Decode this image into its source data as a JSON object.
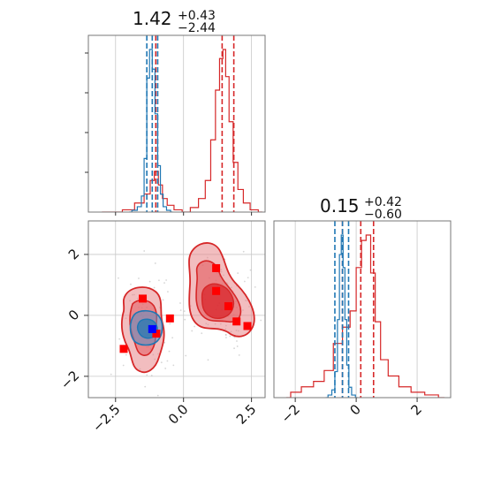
{
  "colors": {
    "red": "#d62728",
    "blue": "#1f77b4",
    "red_fill": "#e8868a",
    "red_fill_dark": "#e35a5f",
    "red_fill_core": "#d8232a",
    "blue_fill": "#5b8ec2",
    "grid": "#c8c8c8",
    "marker_red": "#ff0000",
    "marker_blue": "#0000ff"
  },
  "titles": {
    "top": {
      "value": "1.42",
      "plus": "+0.43",
      "minus": "−2.44"
    },
    "right": {
      "value": "0.15",
      "plus": "+0.42",
      "minus": "−0.60"
    }
  },
  "chart_data": [
    {
      "panel": "top-left histogram (parameter 1)",
      "type": "line",
      "xlim": [
        -3.5,
        3.0
      ],
      "series": [
        {
          "color": "red",
          "quantiles": [
            -1.02,
            1.42,
            1.85
          ],
          "x": [
            -3.0,
            -2.5,
            -2.0,
            -1.6,
            -1.3,
            -1.15,
            -1.0,
            -0.85,
            -0.7,
            -0.5,
            -0.2,
            0.1,
            0.4,
            0.7,
            0.9,
            1.1,
            1.25,
            1.4,
            1.5,
            1.6,
            1.75,
            1.9,
            2.1,
            2.3,
            2.6,
            2.9
          ],
          "counts": [
            0,
            0,
            1,
            4,
            8,
            14,
            18,
            12,
            6,
            3,
            1,
            0,
            2,
            6,
            14,
            32,
            54,
            68,
            72,
            60,
            40,
            22,
            10,
            4,
            1,
            0
          ]
        },
        {
          "color": "blue",
          "quantiles": [
            -1.35,
            -1.15,
            -0.95
          ],
          "x": [
            -2.0,
            -1.8,
            -1.6,
            -1.5,
            -1.4,
            -1.3,
            -1.2,
            -1.1,
            -1.0,
            -0.9,
            -0.8,
            -0.7,
            -0.55,
            -0.4
          ],
          "counts": [
            0,
            2,
            6,
            18,
            60,
            150,
            182,
            160,
            110,
            52,
            20,
            6,
            2,
            0
          ]
        }
      ]
    },
    {
      "panel": "bottom-left 2D density (parameter 1 vs parameter 2)",
      "type": "scatter",
      "xlim": [
        -3.5,
        3.0
      ],
      "ylim": [
        -2.7,
        3.1
      ],
      "xticks": [
        "−2.5",
        "0.0",
        "2.5"
      ],
      "yticks": [
        "2",
        "0",
        "−2"
      ],
      "red_markers": [
        {
          "x": 1.2,
          "y": 1.55
        },
        {
          "x": 1.2,
          "y": 0.8
        },
        {
          "x": 1.65,
          "y": 0.3
        },
        {
          "x": 1.95,
          "y": -0.2
        },
        {
          "x": 2.35,
          "y": -0.35
        },
        {
          "x": -1.5,
          "y": 0.55
        },
        {
          "x": -0.5,
          "y": -0.1
        },
        {
          "x": -1.0,
          "y": -0.6
        },
        {
          "x": -2.2,
          "y": -1.1
        }
      ],
      "blue_markers": [
        {
          "x": -1.15,
          "y": -0.45
        }
      ]
    },
    {
      "panel": "bottom-right histogram (parameter 2)",
      "type": "line",
      "xlim": [
        -2.7,
        3.1
      ],
      "xticks": [
        "−2",
        "0",
        "2"
      ],
      "series": [
        {
          "color": "red",
          "quantiles": [
            -0.45,
            0.15,
            0.57
          ],
          "x": [
            -2.3,
            -2.0,
            -1.6,
            -1.2,
            -0.9,
            -0.6,
            -0.3,
            -0.1,
            0.1,
            0.25,
            0.4,
            0.55,
            0.7,
            0.9,
            1.2,
            1.6,
            2.0,
            2.5,
            2.9
          ],
          "counts": [
            0,
            2,
            4,
            6,
            10,
            20,
            26,
            32,
            48,
            58,
            60,
            46,
            28,
            14,
            8,
            4,
            2,
            1,
            0
          ]
        },
        {
          "color": "blue",
          "quantiles": [
            -0.7,
            -0.45,
            -0.25
          ],
          "x": [
            -1.0,
            -0.85,
            -0.75,
            -0.65,
            -0.58,
            -0.52,
            -0.46,
            -0.4,
            -0.34,
            -0.28,
            -0.2,
            -0.1,
            0.05
          ],
          "counts": [
            0,
            4,
            12,
            40,
            120,
            220,
            250,
            200,
            120,
            50,
            16,
            4,
            0
          ]
        }
      ]
    }
  ]
}
